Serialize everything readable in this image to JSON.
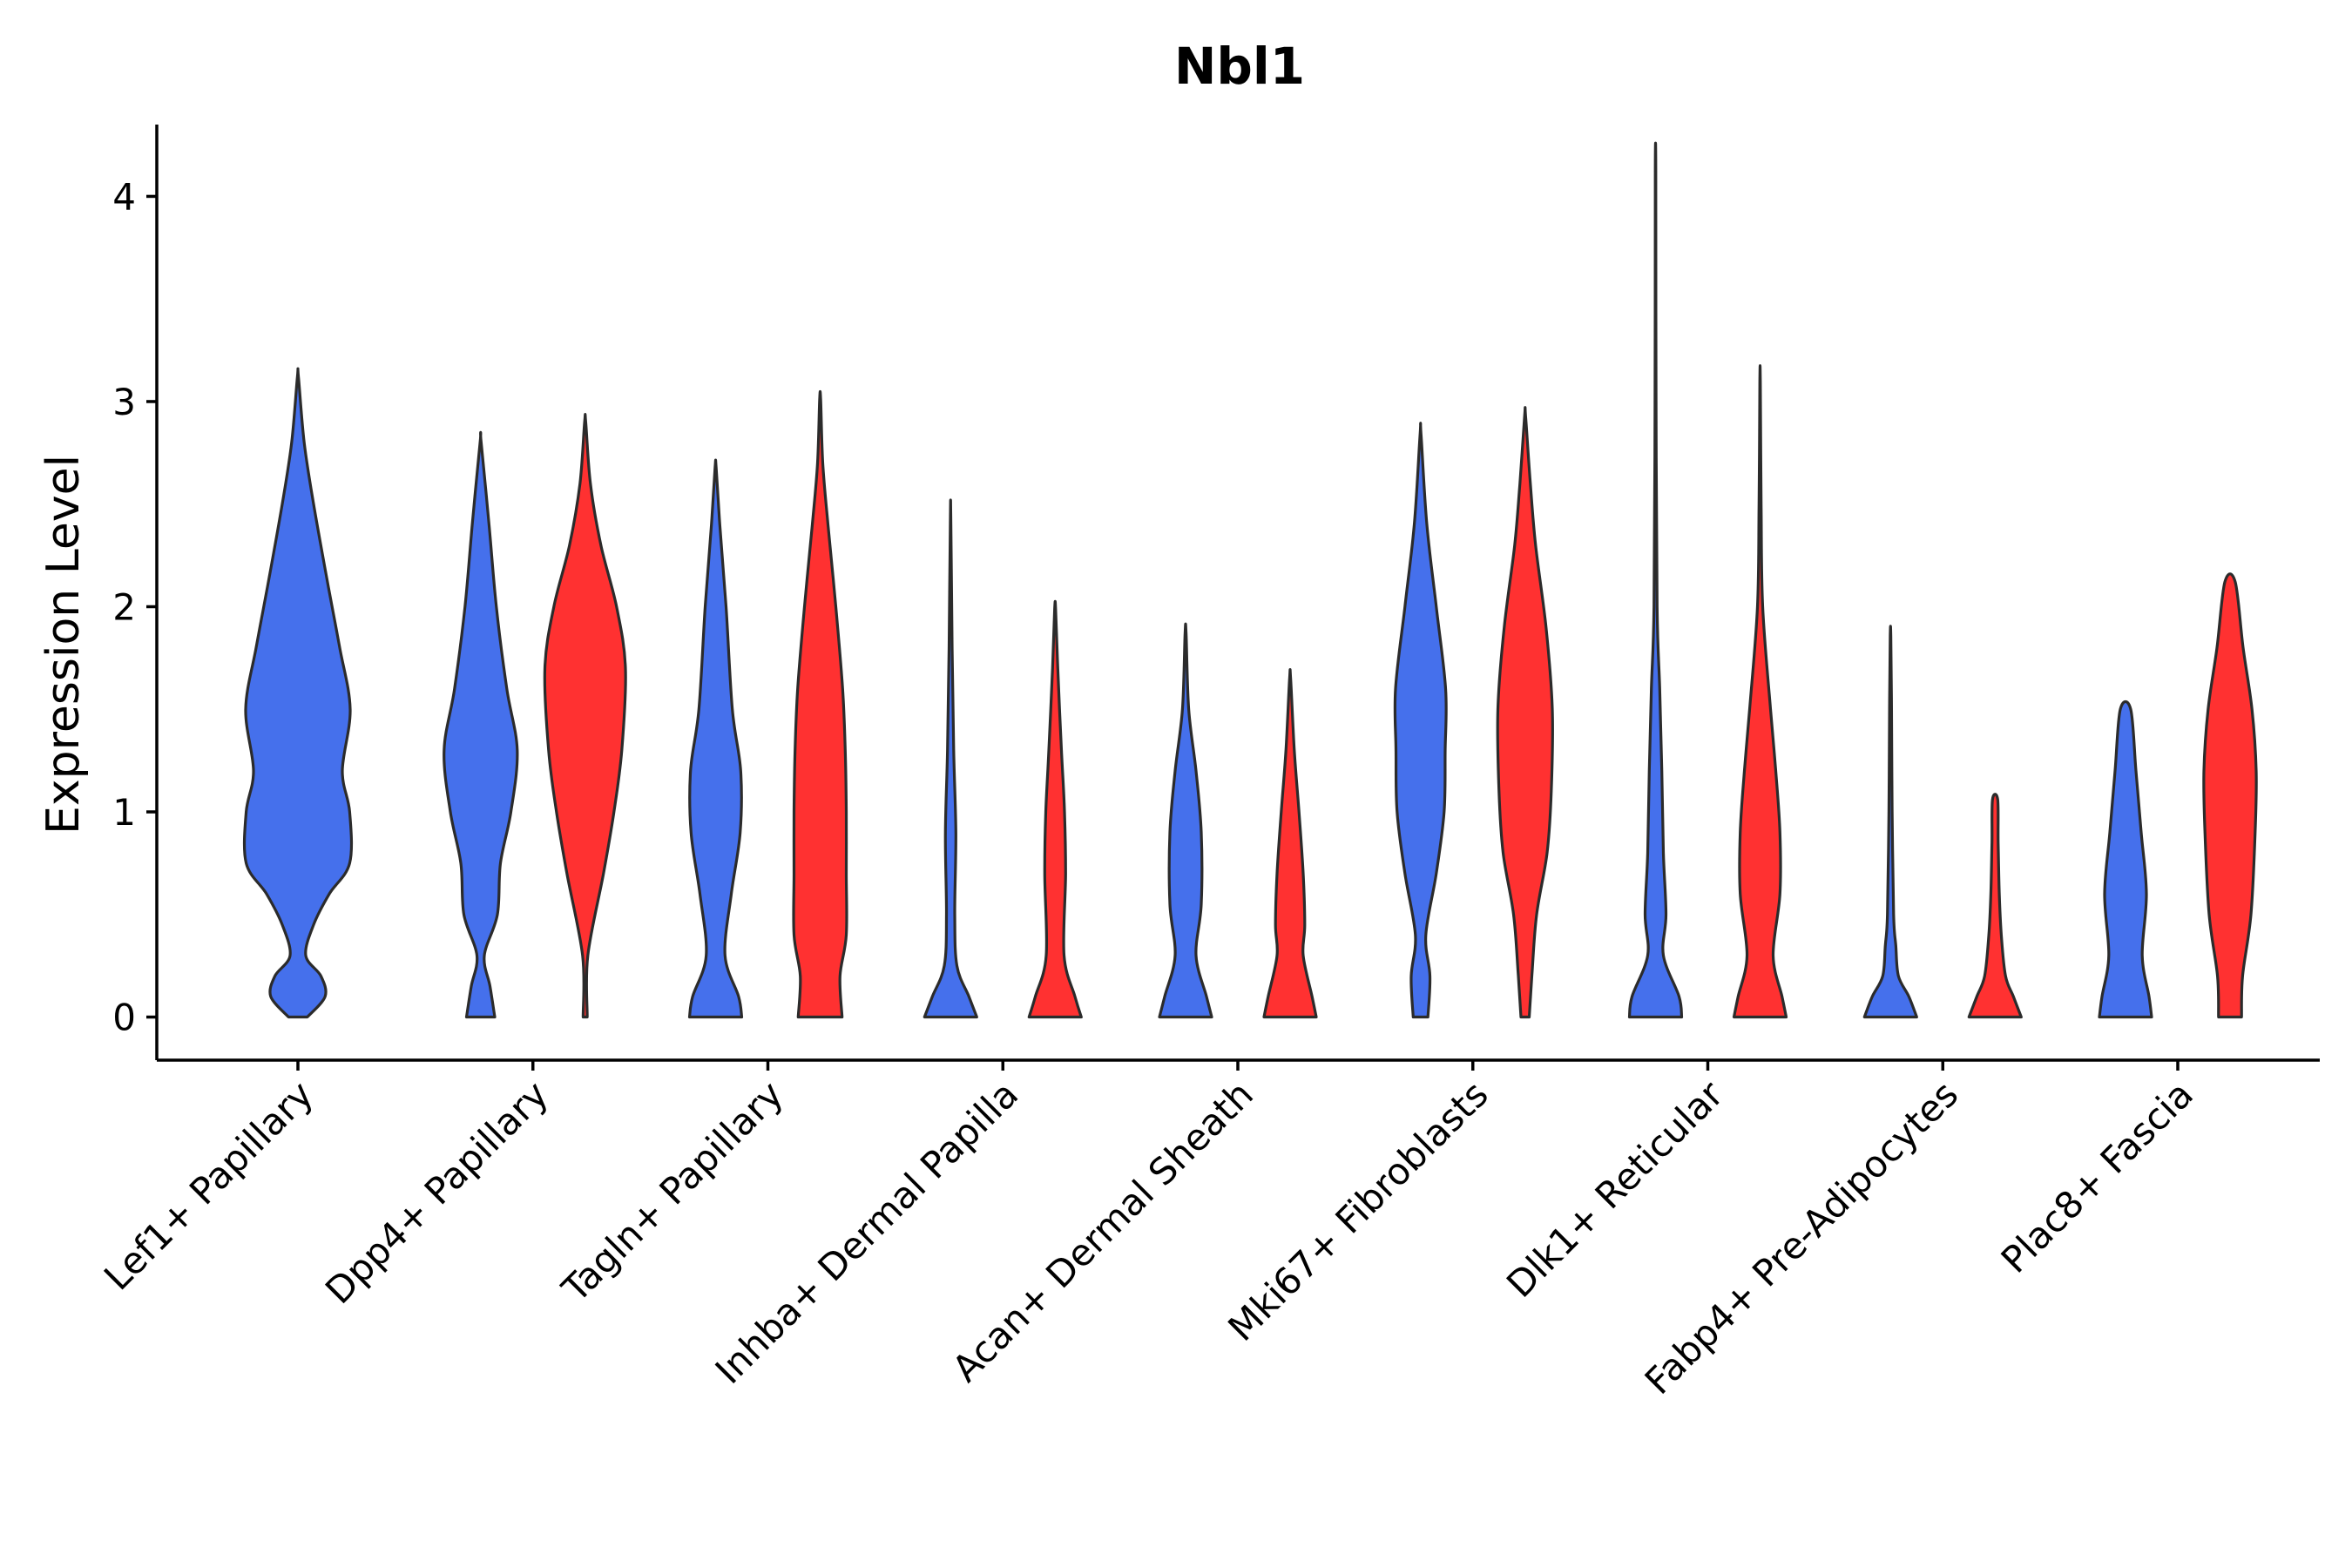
{
  "chart_data": {
    "type": "violin",
    "title": "Nbl1",
    "xlabel": "",
    "ylabel": "Expression Level",
    "ylim": [
      -0.21,
      4.35
    ],
    "yticks": [
      "0",
      "1",
      "2",
      "3",
      "4"
    ],
    "categories": [
      "Lef1+ Papillary",
      "Dpp4+ Papillary",
      "Tagln+ Papillary",
      "Inhba+ Dermal Papilla",
      "Acan+ Dermal Sheath",
      "Mki67+ Fibroblasts",
      "Dlk1+ Reticular",
      "Fabp4+ Pre-Adipocytes",
      "Plac8+ Fascia"
    ],
    "colors": {
      "blue": "#4570EC",
      "red": "#FF3131"
    },
    "violins": [
      {
        "category": "Lef1+ Papillary",
        "color": "blue",
        "profile": [
          [
            0,
            0.18
          ],
          [
            0.1,
            0.52
          ],
          [
            0.2,
            0.44
          ],
          [
            0.3,
            0.15
          ],
          [
            0.45,
            0.3
          ],
          [
            0.6,
            0.6
          ],
          [
            0.75,
            0.99
          ],
          [
            1.0,
            0.99
          ],
          [
            1.2,
            0.85
          ],
          [
            1.5,
            1.0
          ],
          [
            1.8,
            0.8
          ],
          [
            2.1,
            0.58
          ],
          [
            2.5,
            0.3
          ],
          [
            2.8,
            0.12
          ],
          [
            3.12,
            0.01
          ]
        ]
      },
      {
        "category": "Dpp4+ Papillary",
        "color": "blue",
        "profile": [
          [
            0,
            0.27
          ],
          [
            0.15,
            0.18
          ],
          [
            0.3,
            0.07
          ],
          [
            0.5,
            0.32
          ],
          [
            0.75,
            0.38
          ],
          [
            1.0,
            0.58
          ],
          [
            1.3,
            0.7
          ],
          [
            1.6,
            0.5
          ],
          [
            2.0,
            0.3
          ],
          [
            2.4,
            0.16
          ],
          [
            2.8,
            0.01
          ]
        ]
      },
      {
        "category": "Dpp4+ Papillary",
        "color": "red",
        "profile": [
          [
            0,
            0.04
          ],
          [
            0.3,
            0.05
          ],
          [
            0.7,
            0.35
          ],
          [
            1.0,
            0.55
          ],
          [
            1.3,
            0.7
          ],
          [
            1.7,
            0.77
          ],
          [
            2.0,
            0.6
          ],
          [
            2.3,
            0.3
          ],
          [
            2.6,
            0.1
          ],
          [
            2.9,
            0.01
          ]
        ]
      },
      {
        "category": "Tagln+ Papillary",
        "color": "blue",
        "profile": [
          [
            0,
            0.5
          ],
          [
            0.1,
            0.44
          ],
          [
            0.3,
            0.18
          ],
          [
            0.6,
            0.3
          ],
          [
            0.9,
            0.47
          ],
          [
            1.2,
            0.48
          ],
          [
            1.5,
            0.32
          ],
          [
            2.0,
            0.2
          ],
          [
            2.4,
            0.08
          ],
          [
            2.68,
            0.01
          ]
        ]
      },
      {
        "category": "Tagln+ Papillary",
        "color": "red",
        "profile": [
          [
            0,
            0.42
          ],
          [
            0.2,
            0.38
          ],
          [
            0.4,
            0.5
          ],
          [
            0.7,
            0.5
          ],
          [
            1.0,
            0.5
          ],
          [
            1.3,
            0.48
          ],
          [
            1.6,
            0.43
          ],
          [
            2.0,
            0.3
          ],
          [
            2.4,
            0.15
          ],
          [
            2.7,
            0.05
          ],
          [
            3.01,
            0.01
          ]
        ]
      },
      {
        "category": "Inhba+ Dermal Papilla",
        "color": "blue",
        "profile": [
          [
            0,
            0.5
          ],
          [
            0.1,
            0.35
          ],
          [
            0.25,
            0.12
          ],
          [
            0.5,
            0.08
          ],
          [
            0.9,
            0.1
          ],
          [
            1.3,
            0.06
          ],
          [
            1.8,
            0.03
          ],
          [
            2.44,
            0.005
          ]
        ]
      },
      {
        "category": "Inhba+ Dermal Papilla",
        "color": "red",
        "profile": [
          [
            0,
            0.5
          ],
          [
            0.1,
            0.38
          ],
          [
            0.3,
            0.17
          ],
          [
            0.7,
            0.2
          ],
          [
            1.0,
            0.18
          ],
          [
            1.3,
            0.12
          ],
          [
            1.7,
            0.05
          ],
          [
            1.99,
            0.01
          ]
        ]
      },
      {
        "category": "Acan+ Dermal Sheath",
        "color": "blue",
        "profile": [
          [
            0,
            0.5
          ],
          [
            0.1,
            0.4
          ],
          [
            0.3,
            0.2
          ],
          [
            0.55,
            0.3
          ],
          [
            0.9,
            0.3
          ],
          [
            1.2,
            0.2
          ],
          [
            1.5,
            0.06
          ],
          [
            1.87,
            0.01
          ]
        ]
      },
      {
        "category": "Acan+ Dermal Sheath",
        "color": "red",
        "profile": [
          [
            0,
            0.5
          ],
          [
            0.1,
            0.42
          ],
          [
            0.3,
            0.25
          ],
          [
            0.45,
            0.28
          ],
          [
            0.7,
            0.25
          ],
          [
            1.0,
            0.17
          ],
          [
            1.3,
            0.08
          ],
          [
            1.65,
            0.01
          ]
        ]
      },
      {
        "category": "Mki67+ Fibroblasts",
        "color": "blue",
        "profile": [
          [
            0,
            0.14
          ],
          [
            0.2,
            0.18
          ],
          [
            0.4,
            0.1
          ],
          [
            0.7,
            0.3
          ],
          [
            1.0,
            0.45
          ],
          [
            1.3,
            0.47
          ],
          [
            1.6,
            0.48
          ],
          [
            2.0,
            0.3
          ],
          [
            2.4,
            0.12
          ],
          [
            2.84,
            0.01
          ]
        ]
      },
      {
        "category": "Mki67+ Fibroblasts",
        "color": "red",
        "profile": [
          [
            0,
            0.08
          ],
          [
            0.2,
            0.13
          ],
          [
            0.5,
            0.22
          ],
          [
            0.8,
            0.42
          ],
          [
            1.1,
            0.5
          ],
          [
            1.5,
            0.52
          ],
          [
            1.9,
            0.4
          ],
          [
            2.3,
            0.2
          ],
          [
            2.6,
            0.1
          ],
          [
            2.93,
            0.01
          ]
        ]
      },
      {
        "category": "Dlk1+ Reticular",
        "color": "blue",
        "profile": [
          [
            0,
            0.5
          ],
          [
            0.1,
            0.45
          ],
          [
            0.3,
            0.15
          ],
          [
            0.5,
            0.2
          ],
          [
            0.8,
            0.15
          ],
          [
            1.2,
            0.12
          ],
          [
            1.6,
            0.08
          ],
          [
            2.0,
            0.03
          ],
          [
            3.0,
            0.01
          ],
          [
            4.12,
            0.005
          ]
        ]
      },
      {
        "category": "Dlk1+ Reticular",
        "color": "red",
        "profile": [
          [
            0,
            0.5
          ],
          [
            0.1,
            0.42
          ],
          [
            0.3,
            0.25
          ],
          [
            0.6,
            0.38
          ],
          [
            0.9,
            0.38
          ],
          [
            1.2,
            0.3
          ],
          [
            1.5,
            0.2
          ],
          [
            2.0,
            0.05
          ],
          [
            2.5,
            0.02
          ],
          [
            3.1,
            0.005
          ]
        ]
      },
      {
        "category": "Fabp4+ Pre-Adipocytes",
        "color": "blue",
        "profile": [
          [
            0,
            0.5
          ],
          [
            0.1,
            0.35
          ],
          [
            0.2,
            0.15
          ],
          [
            0.35,
            0.1
          ],
          [
            0.5,
            0.06
          ],
          [
            1.0,
            0.03
          ],
          [
            1.5,
            0.02
          ],
          [
            1.86,
            0.005
          ]
        ]
      },
      {
        "category": "Fabp4+ Pre-Adipocytes",
        "color": "red",
        "profile": [
          [
            0,
            0.5
          ],
          [
            0.1,
            0.35
          ],
          [
            0.2,
            0.2
          ],
          [
            0.4,
            0.12
          ],
          [
            0.6,
            0.08
          ],
          [
            0.85,
            0.06
          ],
          [
            1.06,
            0.05
          ]
        ]
      },
      {
        "category": "Plac8+ Fascia",
        "color": "blue",
        "profile": [
          [
            0,
            0.5
          ],
          [
            0.1,
            0.45
          ],
          [
            0.3,
            0.32
          ],
          [
            0.6,
            0.4
          ],
          [
            0.9,
            0.3
          ],
          [
            1.2,
            0.2
          ],
          [
            1.5,
            0.1
          ]
        ]
      },
      {
        "category": "Plac8+ Fascia",
        "color": "red",
        "profile": [
          [
            0,
            0.22
          ],
          [
            0.2,
            0.24
          ],
          [
            0.5,
            0.4
          ],
          [
            0.9,
            0.48
          ],
          [
            1.2,
            0.5
          ],
          [
            1.5,
            0.42
          ],
          [
            1.8,
            0.25
          ],
          [
            2.12,
            0.1
          ]
        ]
      }
    ]
  }
}
